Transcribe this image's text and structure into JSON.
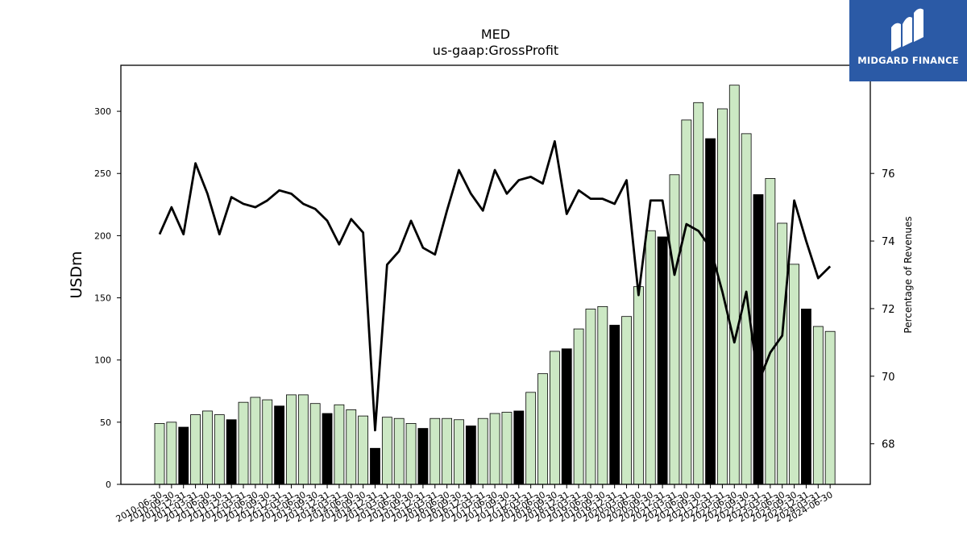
{
  "logo": {
    "text": "MIDGARD FINANCE",
    "icon": "midgard-logo-icon",
    "color": "#2b5aa6"
  },
  "chart_data": {
    "type": "bar",
    "title": "MED",
    "subtitle": "us-gaap:GrossProfit",
    "ylabel": "USDm",
    "y2label": "Percentage of Revenues",
    "ylim": [
      0,
      337
    ],
    "y2lim": [
      66.8,
      79.2
    ],
    "yticks": [
      0,
      50,
      100,
      150,
      200,
      250,
      300
    ],
    "y2ticks": [
      68,
      70,
      72,
      74,
      76
    ],
    "categories": [
      "2010-06-30",
      "2010-09-30",
      "2010-12-31",
      "2011-03-31",
      "2011-06-30",
      "2011-09-30",
      "2011-12-31",
      "2012-03-31",
      "2012-06-30",
      "2012-09-30",
      "2012-12-31",
      "2013-03-31",
      "2013-06-30",
      "2013-09-30",
      "2013-12-31",
      "2014-03-31",
      "2014-06-30",
      "2014-09-30",
      "2014-12-31",
      "2015-03-31",
      "2015-06-30",
      "2015-09-30",
      "2015-12-31",
      "2016-03-31",
      "2016-06-30",
      "2016-09-30",
      "2016-12-31",
      "2017-03-31",
      "2017-06-30",
      "2017-09-30",
      "2017-12-31",
      "2018-03-31",
      "2018-06-30",
      "2018-09-30",
      "2018-12-31",
      "2019-03-31",
      "2019-06-30",
      "2019-09-30",
      "2019-12-31",
      "2020-03-31",
      "2020-06-30",
      "2020-09-30",
      "2020-12-31",
      "2021-03-31",
      "2021-06-30",
      "2021-09-30",
      "2021-12-31",
      "2022-03-31",
      "2022-06-30",
      "2022-09-30",
      "2022-12-31",
      "2023-03-31",
      "2023-06-30",
      "2023-09-30",
      "2023-12-31",
      "2024-03-31",
      "2024-06-30"
    ],
    "series": [
      {
        "kind": "bar",
        "values": [
          49,
          50,
          46,
          56,
          59,
          56,
          52,
          66,
          70,
          68,
          63,
          72,
          72,
          65,
          57,
          64,
          60,
          55,
          29,
          54,
          53,
          49,
          45,
          53,
          53,
          52,
          47,
          53,
          57,
          58,
          59,
          74,
          89,
          107,
          109,
          125,
          141,
          143,
          128,
          135,
          159,
          204,
          199,
          249,
          293,
          307,
          278,
          302,
          321,
          282,
          233,
          246,
          210,
          177,
          141,
          127,
          123
        ],
        "highlight": [
          2,
          6,
          10,
          14,
          18,
          22,
          26,
          30,
          34,
          38,
          42,
          46,
          50,
          54
        ],
        "fill_color": "#cce8c4",
        "highlight_color": "#000000"
      },
      {
        "kind": "line",
        "axis": "right",
        "color": "#000000",
        "values": [
          74.2,
          75.0,
          74.2,
          76.3,
          75.4,
          74.2,
          75.3,
          75.1,
          75.0,
          75.2,
          75.5,
          75.4,
          75.1,
          74.95,
          74.6,
          73.9,
          74.65,
          74.25,
          68.4,
          73.3,
          73.7,
          74.6,
          73.8,
          73.6,
          74.9,
          76.1,
          75.4,
          74.9,
          76.1,
          75.4,
          75.8,
          75.9,
          75.7,
          76.95,
          74.8,
          75.5,
          75.25,
          75.25,
          75.1,
          75.8,
          72.4,
          75.2,
          75.2,
          73.0,
          74.5,
          74.3,
          73.8,
          72.5,
          71.0,
          72.5,
          69.8,
          70.7,
          71.2,
          75.2,
          74.0,
          72.9,
          73.25
        ]
      }
    ],
    "grid": false,
    "legend": "none"
  }
}
